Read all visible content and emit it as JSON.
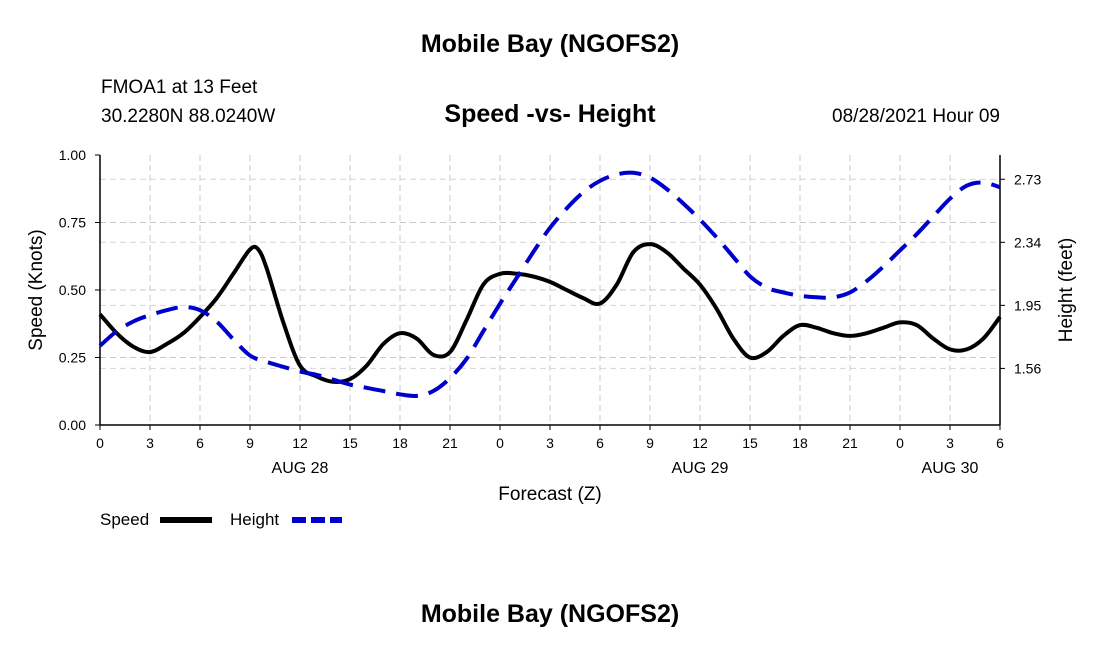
{
  "header": {
    "title": "Mobile Bay (NGOFS2)",
    "station": "FMOA1 at 13 Feet",
    "coords": "30.2280N  88.0240W",
    "subtitle": "Speed -vs- Height",
    "datetime": "08/28/2021 Hour 09"
  },
  "footer": {
    "title": "Mobile Bay (NGOFS2)"
  },
  "legend": {
    "speed_label": "Speed",
    "height_label": "Height"
  },
  "chart_data": {
    "type": "line",
    "title": "Speed -vs- Height",
    "xlabel": "Forecast (Z)",
    "ylabel": "Speed (Knots)",
    "y2label": "Height (feet)",
    "xlim": [
      0,
      54
    ],
    "ylim": [
      0,
      1.0
    ],
    "y2lim": [
      1.21,
      2.88
    ],
    "grid": true,
    "legend_position": "bottom-left",
    "x_ticks": [
      {
        "x": 0,
        "label": "0"
      },
      {
        "x": 3,
        "label": "3"
      },
      {
        "x": 6,
        "label": "6"
      },
      {
        "x": 9,
        "label": "9"
      },
      {
        "x": 12,
        "label": "12"
      },
      {
        "x": 15,
        "label": "15"
      },
      {
        "x": 18,
        "label": "18"
      },
      {
        "x": 21,
        "label": "21"
      },
      {
        "x": 24,
        "label": "0"
      },
      {
        "x": 27,
        "label": "3"
      },
      {
        "x": 30,
        "label": "6"
      },
      {
        "x": 33,
        "label": "9"
      },
      {
        "x": 36,
        "label": "12"
      },
      {
        "x": 39,
        "label": "15"
      },
      {
        "x": 42,
        "label": "18"
      },
      {
        "x": 45,
        "label": "21"
      },
      {
        "x": 48,
        "label": "0"
      },
      {
        "x": 51,
        "label": "3"
      },
      {
        "x": 54,
        "label": "6"
      }
    ],
    "date_labels": [
      {
        "x": 12,
        "label": "AUG 28"
      },
      {
        "x": 36,
        "label": "AUG 29"
      },
      {
        "x": 51,
        "label": "AUG 30"
      }
    ],
    "y_ticks": [
      {
        "v": 0.0,
        "label": "0.00"
      },
      {
        "v": 0.25,
        "label": "0.25"
      },
      {
        "v": 0.5,
        "label": "0.50"
      },
      {
        "v": 0.75,
        "label": "0.75"
      },
      {
        "v": 1.0,
        "label": "1.00"
      }
    ],
    "y2_ticks": [
      {
        "v": 1.56,
        "label": "1.56"
      },
      {
        "v": 1.95,
        "label": "1.95"
      },
      {
        "v": 2.34,
        "label": "2.34"
      },
      {
        "v": 2.73,
        "label": "2.73"
      }
    ],
    "series": [
      {
        "name": "Speed",
        "axis": "left",
        "color": "#000000",
        "dash": "solid",
        "x": [
          0,
          1,
          2,
          3,
          4,
          5,
          6,
          7,
          8,
          9,
          9.5,
          10,
          11,
          12,
          13,
          14,
          15,
          16,
          17,
          18,
          19,
          20,
          21,
          22,
          23,
          24,
          25,
          26,
          27,
          28,
          29,
          30,
          31,
          32,
          33,
          34,
          35,
          36,
          37,
          38,
          39,
          40,
          41,
          42,
          43,
          44,
          45,
          46,
          47,
          48,
          49,
          50,
          51,
          52,
          53,
          54
        ],
        "values": [
          0.41,
          0.34,
          0.29,
          0.27,
          0.3,
          0.34,
          0.4,
          0.47,
          0.56,
          0.65,
          0.65,
          0.58,
          0.38,
          0.22,
          0.18,
          0.16,
          0.17,
          0.22,
          0.3,
          0.34,
          0.32,
          0.26,
          0.27,
          0.39,
          0.52,
          0.56,
          0.56,
          0.55,
          0.53,
          0.5,
          0.47,
          0.45,
          0.52,
          0.64,
          0.67,
          0.64,
          0.58,
          0.52,
          0.43,
          0.32,
          0.25,
          0.27,
          0.33,
          0.37,
          0.36,
          0.34,
          0.33,
          0.34,
          0.36,
          0.38,
          0.37,
          0.32,
          0.28,
          0.28,
          0.32,
          0.4
        ]
      },
      {
        "name": "Height",
        "axis": "right",
        "color": "#0000cc",
        "dash": "dashed",
        "x": [
          0,
          1,
          2,
          3,
          4,
          5,
          6,
          7,
          8,
          9,
          10,
          11,
          12,
          13,
          14,
          15,
          16,
          17,
          18,
          19,
          20,
          21,
          22,
          23,
          24,
          25,
          26,
          27,
          28,
          29,
          30,
          31,
          32,
          33,
          34,
          35,
          36,
          37,
          38,
          39,
          40,
          41,
          42,
          43,
          44,
          45,
          46,
          47,
          48,
          49,
          50,
          51,
          52,
          53,
          54
        ],
        "values": [
          1.7,
          1.79,
          1.85,
          1.89,
          1.92,
          1.94,
          1.92,
          1.85,
          1.74,
          1.64,
          1.6,
          1.57,
          1.54,
          1.52,
          1.49,
          1.46,
          1.44,
          1.42,
          1.4,
          1.39,
          1.42,
          1.5,
          1.62,
          1.79,
          1.96,
          2.12,
          2.28,
          2.43,
          2.55,
          2.65,
          2.72,
          2.76,
          2.77,
          2.74,
          2.67,
          2.58,
          2.48,
          2.37,
          2.25,
          2.13,
          2.06,
          2.03,
          2.01,
          2.0,
          2.0,
          2.03,
          2.1,
          2.19,
          2.29,
          2.39,
          2.5,
          2.61,
          2.69,
          2.71,
          2.68
        ]
      }
    ]
  }
}
